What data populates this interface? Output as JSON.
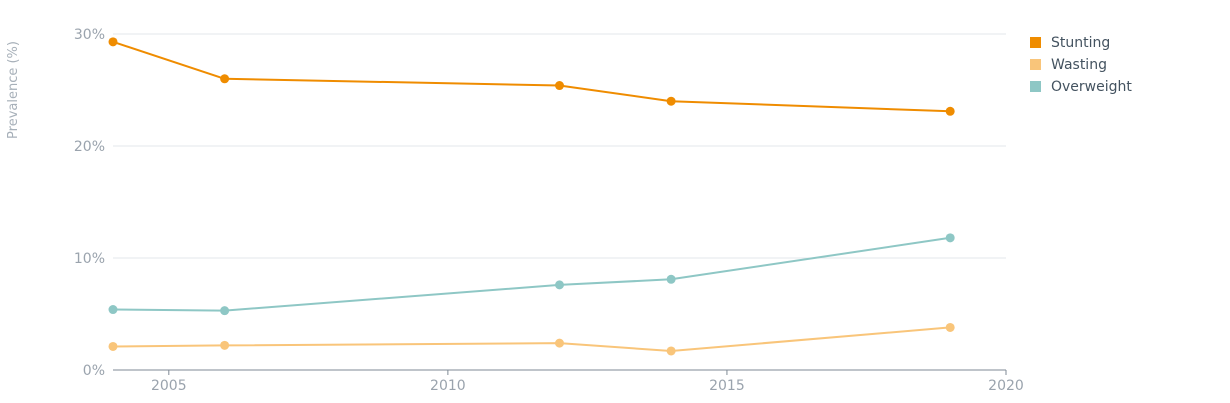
{
  "chart_data": {
    "type": "line",
    "title": "",
    "xlabel": "",
    "ylabel": "Prevalence (%)",
    "xlim": [
      2004,
      2020
    ],
    "ylim": [
      0,
      30
    ],
    "x_ticks": [
      2005,
      2010,
      2015,
      2020
    ],
    "x_tick_labels": [
      "2005",
      "2010",
      "2015",
      "2020"
    ],
    "y_ticks": [
      0,
      10,
      20,
      30
    ],
    "y_tick_labels": [
      "0%",
      "10%",
      "20%",
      "30%"
    ],
    "grid": "horizontal",
    "legend_position": "top-right",
    "series": [
      {
        "name": "Stunting",
        "color": "#ef8c00",
        "points": [
          [
            2004,
            29.3
          ],
          [
            2006,
            26.0
          ],
          [
            2012,
            25.4
          ],
          [
            2014,
            24.0
          ],
          [
            2019,
            23.1
          ]
        ]
      },
      {
        "name": "Wasting",
        "color": "#f9c57a",
        "points": [
          [
            2004,
            2.1
          ],
          [
            2006,
            2.2
          ],
          [
            2012,
            2.4
          ],
          [
            2014,
            1.7
          ],
          [
            2019,
            3.8
          ]
        ]
      },
      {
        "name": "Overweight",
        "color": "#8ec7c5",
        "points": [
          [
            2004,
            5.4
          ],
          [
            2006,
            5.3
          ],
          [
            2012,
            7.6
          ],
          [
            2014,
            8.1
          ],
          [
            2019,
            11.8
          ]
        ]
      }
    ]
  }
}
